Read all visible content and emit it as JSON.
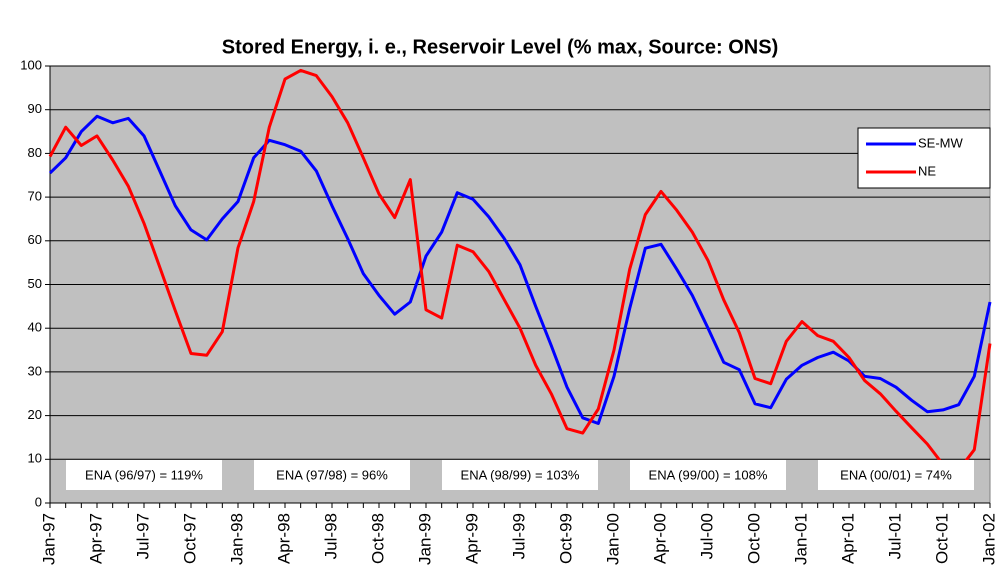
{
  "chart_data": {
    "type": "line",
    "title": "Stored Energy, i. e., Reservoir Level (% max, Source: ONS)",
    "categories": [
      "Jan-97",
      null,
      null,
      "Apr-97",
      null,
      null,
      "Jul-97",
      null,
      null,
      "Oct-97",
      null,
      null,
      "Jan-98",
      null,
      null,
      "Apr-98",
      null,
      null,
      "Jul-98",
      null,
      null,
      "Oct-98",
      null,
      null,
      "Jan-99",
      null,
      null,
      "Apr-99",
      null,
      null,
      "Jul-99",
      null,
      null,
      "Oct-99",
      null,
      null,
      "Jan-00",
      null,
      null,
      "Apr-00",
      null,
      null,
      "Jul-00",
      null,
      null,
      "Oct-00",
      null,
      null,
      "Jan-01",
      null,
      null,
      "Apr-01",
      null,
      null,
      "Jul-01",
      null,
      null,
      "Oct-01",
      null,
      null,
      "Jan-02"
    ],
    "series": [
      {
        "name": "SE-MW",
        "color": "#0000ff",
        "values": [
          75.5,
          79,
          85,
          88.5,
          87,
          88,
          84,
          76,
          68,
          62.5,
          60.2,
          65,
          69,
          79,
          83,
          82,
          80.5,
          76,
          68,
          60.5,
          52.5,
          47.5,
          43.2,
          46,
          56.5,
          62,
          71,
          69.5,
          65.5,
          60.5,
          54.5,
          45,
          36,
          26.5,
          19.5,
          18.2,
          29,
          44.5,
          58.3,
          59.2,
          53.5,
          47.5,
          40,
          32.2,
          30.5,
          22.7,
          21.8,
          28.3,
          31.5,
          33.3,
          34.5,
          32.5,
          29,
          28.5,
          26.5,
          23.5,
          20.9,
          21.3,
          22.5,
          29,
          46
        ]
      },
      {
        "name": "NE",
        "color": "#ff0000",
        "values": [
          79.3,
          86,
          81.8,
          84,
          78.5,
          72.5,
          64,
          54,
          44,
          34.2,
          33.8,
          39.2,
          58.4,
          69,
          86,
          97,
          99,
          97.8,
          93,
          87,
          79,
          70.7,
          65.3,
          74,
          44.2,
          42.3,
          59,
          57.5,
          53,
          46.5,
          40,
          31.5,
          25,
          17,
          16,
          21.5,
          35,
          53.5,
          66,
          71.3,
          67,
          62,
          55.5,
          46.5,
          39,
          28.5,
          27.3,
          37,
          41.5,
          38.3,
          37,
          33.3,
          28,
          25,
          21,
          17.2,
          13.5,
          8.8,
          7.5,
          12.2,
          36.5
        ]
      }
    ],
    "annotations": [
      "ENA (96/97) = 119%",
      "ENA (97/98) = 96%",
      "ENA (98/99) =  103%",
      "ENA (99/00) = 108%",
      "ENA (00/01) = 74%"
    ],
    "ylim": [
      0,
      100
    ],
    "yticks": [
      0,
      10,
      20,
      30,
      40,
      50,
      60,
      70,
      80,
      90,
      100
    ],
    "grid": true,
    "legend": "upper right",
    "background": "#c0c0c0"
  }
}
